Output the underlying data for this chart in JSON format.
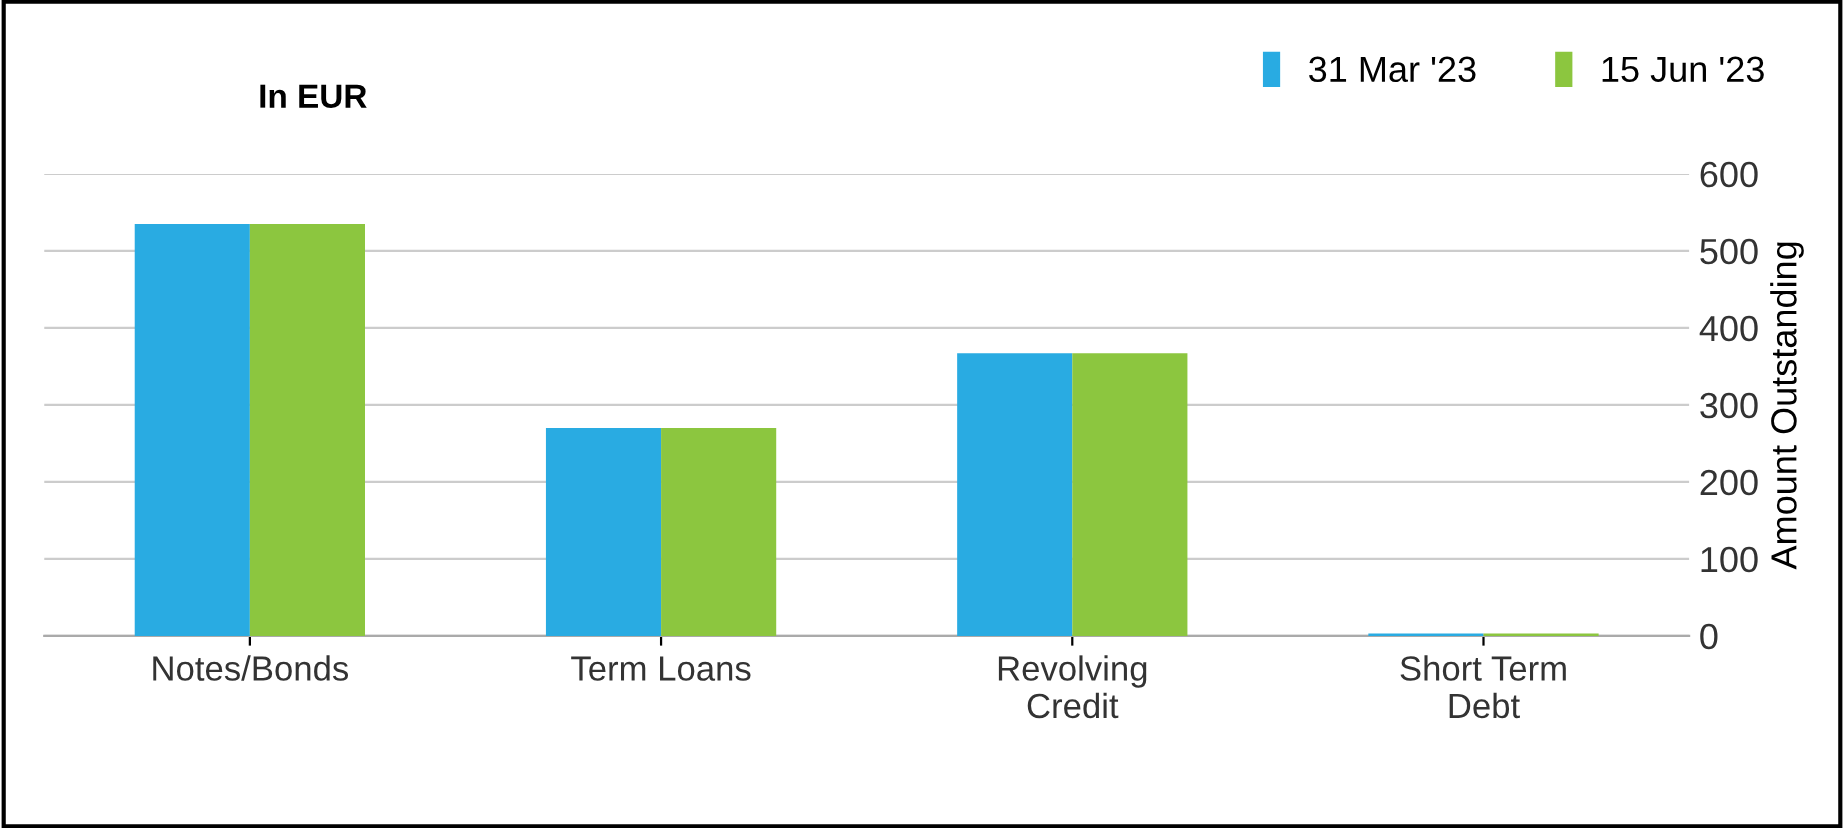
{
  "chart_data": {
    "type": "bar",
    "title": "In EUR",
    "categories": [
      "Notes/Bonds",
      "Term Loans",
      "Revolving\nCredit",
      "Short Term\nDebt"
    ],
    "series": [
      {
        "name": "31 Mar '23",
        "color": "#29abe2",
        "values": [
          535,
          270,
          367,
          3
        ]
      },
      {
        "name": "15 Jun '23",
        "color": "#8cc63f",
        "values": [
          535,
          270,
          367,
          3
        ]
      }
    ],
    "ylabel": "Amount Outstanding",
    "ylim": [
      0,
      600
    ],
    "yticks": [
      0,
      100,
      200,
      300,
      400,
      500,
      600
    ],
    "grid": "y",
    "legend": "top right"
  }
}
